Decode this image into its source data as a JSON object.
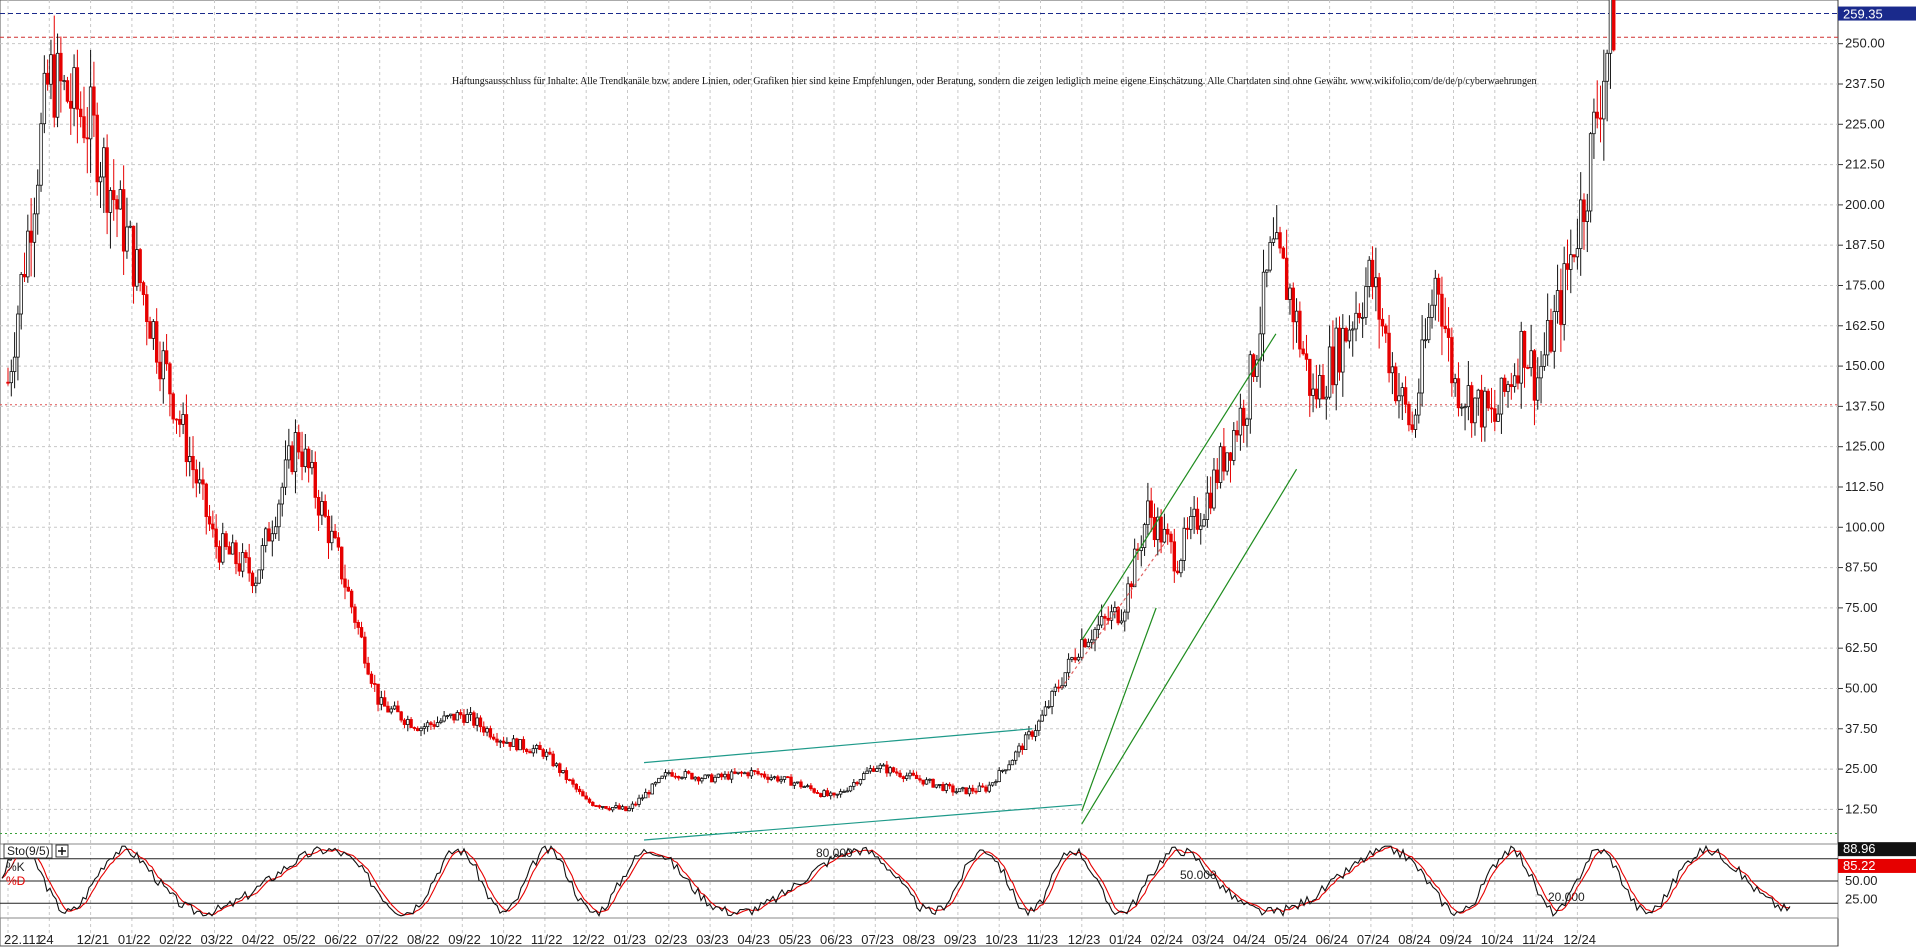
{
  "disclaimer": "Haftungsausschluss für Inhalte: Alle Trendkanäle bzw. andere Linien, oder Grafiken hier sind keine Empfehlungen, oder Beratung, sondern die zeigen lediglich meine eigene Einschätzung. Alle Chartdaten sind ohne Gewähr. www.wikifolio.com/de/de/p/cyberwaehrungen",
  "colors": {
    "candle_up": "#111111",
    "candle_down": "#e60000",
    "price_badge": "#1a2a8c",
    "stoch_k": "#111111",
    "stoch_d": "#e60000",
    "trend_green": "#1e8c1e",
    "trend_teal": "#1f9a8a"
  },
  "chart_data": [
    {
      "type": "candlestick",
      "title": "",
      "y_ticks": [
        "250.00",
        "237.50",
        "225.00",
        "212.50",
        "200.00",
        "187.50",
        "175.00",
        "162.50",
        "150.00",
        "137.50",
        "125.00",
        "112.50",
        "100.00",
        "87.50",
        "75.00",
        "62.50",
        "50.00",
        "37.50",
        "25.00",
        "12.50"
      ],
      "ylim": [
        3,
        262
      ],
      "last_price_label": "259.35",
      "x_labels": [
        "22.11.24",
        "1",
        "12/21",
        "01/22",
        "02/22",
        "03/22",
        "04/22",
        "05/22",
        "06/22",
        "07/22",
        "08/22",
        "09/22",
        "10/22",
        "11/22",
        "12/22",
        "01/23",
        "02/23",
        "03/23",
        "04/23",
        "05/23",
        "06/23",
        "07/23",
        "08/23",
        "09/23",
        "10/23",
        "11/23",
        "12/23",
        "01/24",
        "02/24",
        "03/24",
        "04/24",
        "05/24",
        "06/24",
        "07/24",
        "08/24",
        "09/24",
        "10/24",
        "11/24",
        "12/24"
      ],
      "grid": true,
      "legend": "none",
      "trend_anchors": [
        {
          "m": 0,
          "v": 145
        },
        {
          "m": 1,
          "v": 240
        },
        {
          "m": 2,
          "v": 225
        },
        {
          "m": 3,
          "v": 185
        },
        {
          "m": 4,
          "v": 140
        },
        {
          "m": 5,
          "v": 95
        },
        {
          "m": 6,
          "v": 85
        },
        {
          "m": 7,
          "v": 128
        },
        {
          "m": 8,
          "v": 90
        },
        {
          "m": 9,
          "v": 45
        },
        {
          "m": 10,
          "v": 38
        },
        {
          "m": 11,
          "v": 42
        },
        {
          "m": 12,
          "v": 34
        },
        {
          "m": 13,
          "v": 30
        },
        {
          "m": 14,
          "v": 15
        },
        {
          "m": 15,
          "v": 12
        },
        {
          "m": 15.5,
          "v": 18
        },
        {
          "m": 16,
          "v": 24
        },
        {
          "m": 17,
          "v": 22
        },
        {
          "m": 18,
          "v": 24
        },
        {
          "m": 19,
          "v": 21
        },
        {
          "m": 20,
          "v": 16
        },
        {
          "m": 21,
          "v": 26
        },
        {
          "m": 22,
          "v": 22
        },
        {
          "m": 23,
          "v": 18
        },
        {
          "m": 23.7,
          "v": 19
        },
        {
          "m": 24.3,
          "v": 28
        },
        {
          "m": 25,
          "v": 40
        },
        {
          "m": 26,
          "v": 65
        },
        {
          "m": 27,
          "v": 75
        },
        {
          "m": 27.6,
          "v": 105
        },
        {
          "m": 28.3,
          "v": 90
        },
        {
          "m": 29,
          "v": 108
        },
        {
          "m": 30,
          "v": 140
        },
        {
          "m": 30.6,
          "v": 185
        },
        {
          "m": 31,
          "v": 175
        },
        {
          "m": 31.6,
          "v": 140
        },
        {
          "m": 32,
          "v": 150
        },
        {
          "m": 33,
          "v": 178
        },
        {
          "m": 33.6,
          "v": 145
        },
        {
          "m": 34,
          "v": 130
        },
        {
          "m": 34.6,
          "v": 180
        },
        {
          "m": 35,
          "v": 145
        },
        {
          "m": 36,
          "v": 133
        },
        {
          "m": 36.7,
          "v": 158
        },
        {
          "m": 37,
          "v": 145
        },
        {
          "m": 37.6,
          "v": 170
        },
        {
          "m": 38.2,
          "v": 205
        },
        {
          "m": 38.6,
          "v": 240
        },
        {
          "m": 38.9,
          "v": 259
        }
      ],
      "trendlines": [
        {
          "color": "teal",
          "points": [
            [
              15.4,
              27
            ],
            [
              24.8,
              37.5
            ]
          ]
        },
        {
          "color": "teal",
          "points": [
            [
              15.4,
              3
            ],
            [
              26.0,
              14
            ]
          ]
        },
        {
          "color": "green",
          "points": [
            [
              26.0,
              65
            ],
            [
              30.7,
              160
            ]
          ]
        },
        {
          "color": "green",
          "points": [
            [
              26.0,
              8
            ],
            [
              31.2,
              118
            ]
          ]
        },
        {
          "color": "green",
          "points": [
            [
              26.0,
              12
            ],
            [
              27.8,
              75
            ]
          ]
        },
        {
          "color": "red-dotted",
          "points": [
            [
              25.5,
              50
            ],
            [
              28.0,
              95
            ]
          ]
        }
      ],
      "horizontal_lines": [
        {
          "value": 259.35,
          "style": "blue-dashed"
        },
        {
          "value": 252,
          "style": "red-dashed"
        },
        {
          "value": 138,
          "style": "red-dotted"
        },
        {
          "value": 5,
          "style": "green-dotted"
        }
      ]
    },
    {
      "type": "line",
      "title": "",
      "indicator_label": "Sto(9/5)",
      "series": [
        {
          "name": "%K",
          "last_value": 88.96
        },
        {
          "name": "%D",
          "last_value": 85.22
        }
      ],
      "levels": [
        {
          "value": 80,
          "label": "80.000"
        },
        {
          "value": 50,
          "label": "50.000"
        },
        {
          "value": 20,
          "label": "20.000"
        }
      ],
      "y_ticks": [
        "50.00",
        "25.00"
      ],
      "ylim": [
        0,
        100
      ],
      "note": "oscillating stochastic lines, drawn procedurally"
    }
  ]
}
